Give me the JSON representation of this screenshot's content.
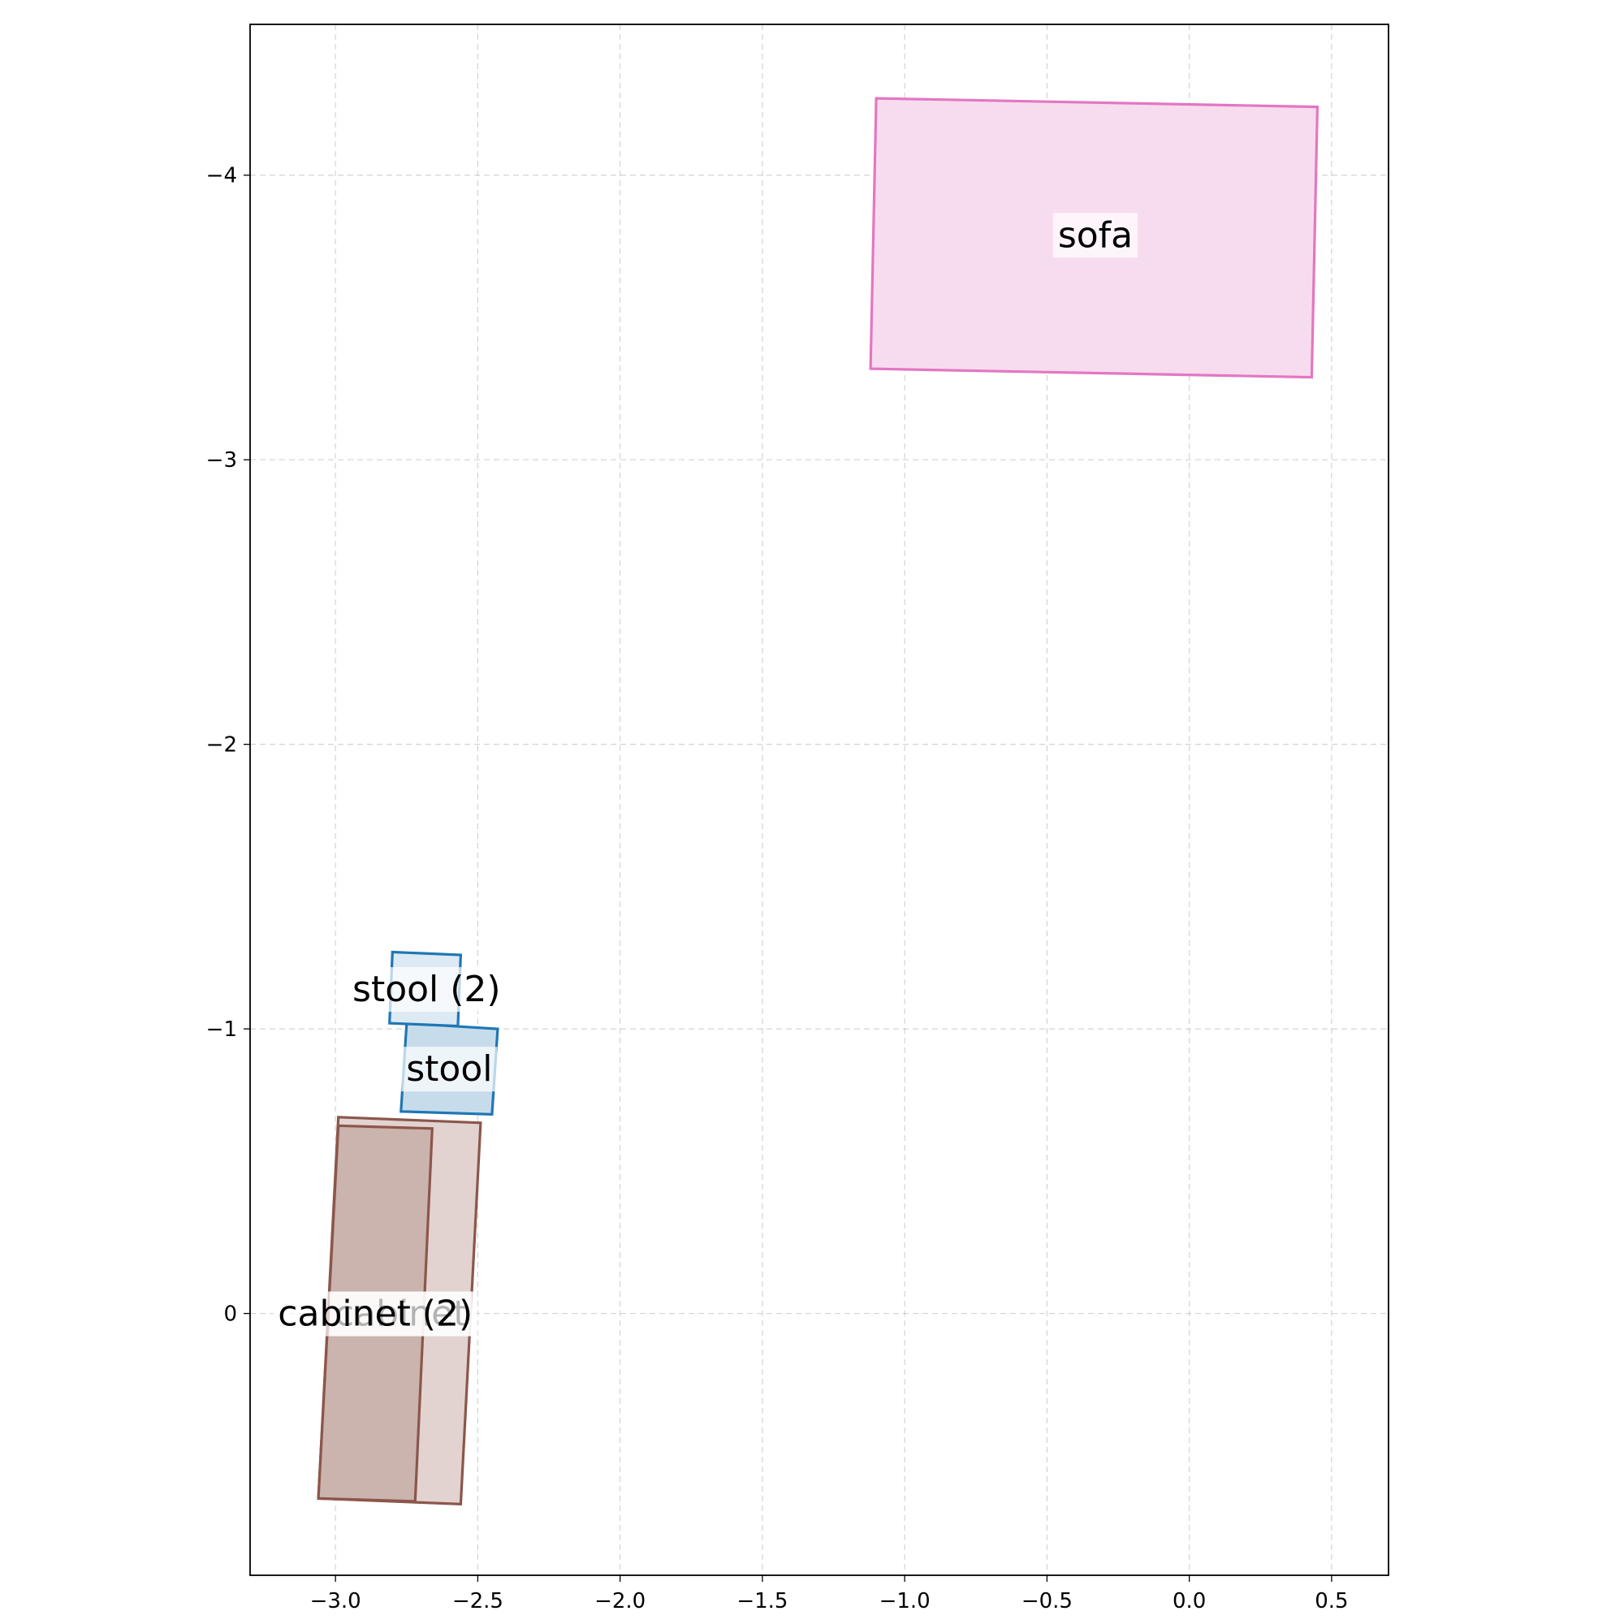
{
  "chart_data": {
    "type": "floor-plan",
    "xlim": [
      -3.3,
      0.7
    ],
    "ylim": [
      0.92,
      -4.53
    ],
    "y_inverted": true,
    "grid": true,
    "x_ticks": [
      {
        "value": -3.0,
        "label": "−3.0"
      },
      {
        "value": -2.5,
        "label": "−2.5"
      },
      {
        "value": -2.0,
        "label": "−2.0"
      },
      {
        "value": -1.5,
        "label": "−1.5"
      },
      {
        "value": -1.0,
        "label": "−1.0"
      },
      {
        "value": -0.5,
        "label": "−0.5"
      },
      {
        "value": 0.0,
        "label": "0.0"
      },
      {
        "value": 0.5,
        "label": "0.5"
      }
    ],
    "y_ticks": [
      {
        "value": -4,
        "label": "−4"
      },
      {
        "value": -3,
        "label": "−3"
      },
      {
        "value": -2,
        "label": "−2"
      },
      {
        "value": -1,
        "label": "−1"
      },
      {
        "value": 0,
        "label": "0"
      }
    ],
    "objects": [
      {
        "id": "sofa",
        "label": "sofa",
        "stroke": "#e377c2",
        "fill": "#f7dcef",
        "corners": [
          [
            -1.1,
            -4.27
          ],
          [
            0.45,
            -4.24
          ],
          [
            0.43,
            -3.29
          ],
          [
            -1.12,
            -3.32
          ]
        ],
        "label_at": [
          -0.33,
          -3.79
        ]
      },
      {
        "id": "cabinet",
        "label": "cabinet",
        "stroke": "#8c564b",
        "fill": "#e2d3d0",
        "corners": [
          [
            -2.99,
            -0.69
          ],
          [
            -2.49,
            -0.67
          ],
          [
            -2.56,
            0.67
          ],
          [
            -3.06,
            0.65
          ]
        ],
        "label_at": [
          -2.77,
          0.0
        ]
      },
      {
        "id": "cabinet-2",
        "label": "cabinet (2)",
        "stroke": "#8c564b",
        "fill": "#cbb3ae",
        "corners": [
          [
            -2.99,
            -0.66
          ],
          [
            -2.66,
            -0.65
          ],
          [
            -2.72,
            0.66
          ],
          [
            -3.06,
            0.65
          ]
        ],
        "label_at": [
          -2.86,
          0.0
        ]
      },
      {
        "id": "stool",
        "label": "stool",
        "stroke": "#1f77b4",
        "fill": "#c7dceb",
        "corners": [
          [
            -2.75,
            -1.02
          ],
          [
            -2.43,
            -1.0
          ],
          [
            -2.45,
            -0.7
          ],
          [
            -2.77,
            -0.71
          ]
        ],
        "label_at": [
          -2.6,
          -0.86
        ]
      },
      {
        "id": "stool-2",
        "label": "stool (2)",
        "stroke": "#1f77b4",
        "fill": "#dde9f3",
        "corners": [
          [
            -2.8,
            -1.27
          ],
          [
            -2.56,
            -1.26
          ],
          [
            -2.57,
            -1.01
          ],
          [
            -2.81,
            -1.02
          ]
        ],
        "label_at": [
          -2.68,
          -1.14
        ]
      }
    ]
  }
}
